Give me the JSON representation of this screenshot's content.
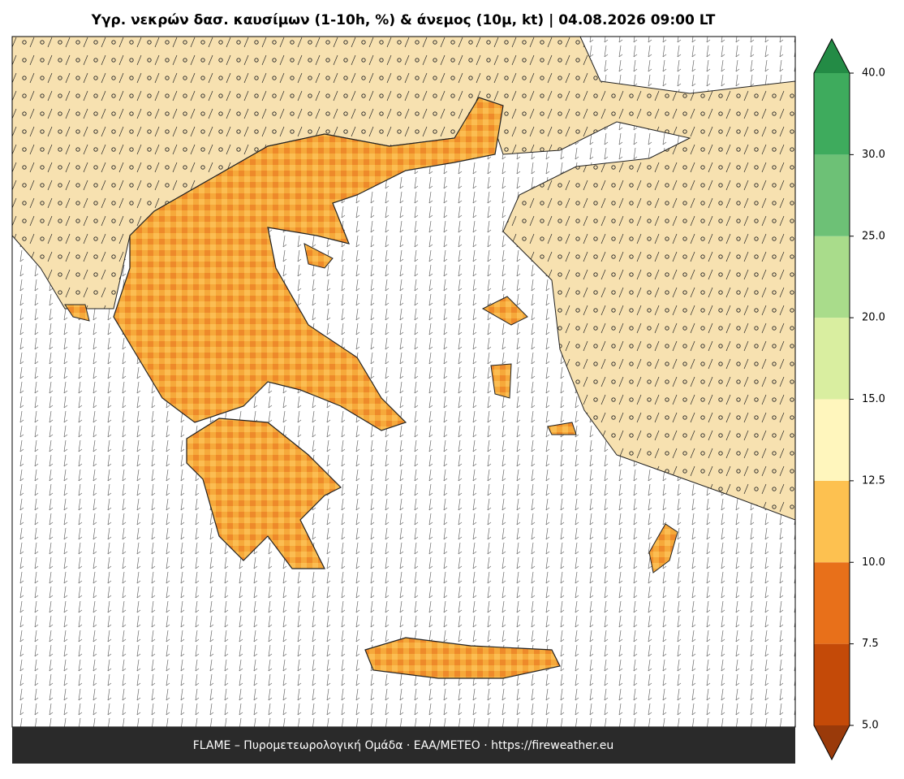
{
  "chart_data": {
    "type": "colorbar-map",
    "title": "Υγρ. νεκρών δασ. καυσίμων (1-10h, %) & άνεμος (10μ, kt)  |  04.08.2026 09:00 LT",
    "footer": "FLAME – Πυρομετεωρολογική Ομάδα · ΕΑΑ/METEO · https://fireweather.eu",
    "boundaries": [
      5,
      7.5,
      10,
      12.5,
      15,
      20,
      25,
      30,
      40
    ],
    "colors": [
      "#c44a08",
      "#e8701a",
      "#fdc150",
      "#fff6bd",
      "#d9eea0",
      "#a9dc8b",
      "#6dc176",
      "#3eab5d"
    ],
    "extend_colors": [
      "#9a3a0a",
      "#238b45"
    ],
    "yticks": [
      {
        "value": 5,
        "label": "5.0"
      },
      {
        "value": 7.5,
        "label": "7.5"
      },
      {
        "value": 10,
        "label": "10.0"
      },
      {
        "value": 12.5,
        "label": "12.5"
      },
      {
        "value": 15,
        "label": "15.0"
      },
      {
        "value": 20,
        "label": "20.0"
      },
      {
        "value": 25,
        "label": "25.0"
      },
      {
        "value": 30,
        "label": "30.0"
      },
      {
        "value": 40,
        "label": "40.0"
      }
    ]
  }
}
